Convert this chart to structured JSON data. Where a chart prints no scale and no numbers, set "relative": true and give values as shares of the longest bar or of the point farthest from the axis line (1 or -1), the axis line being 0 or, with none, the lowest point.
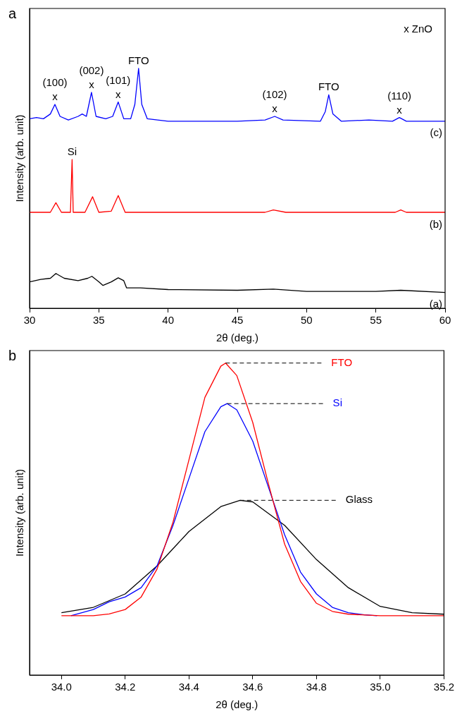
{
  "chart_data": [
    {
      "type": "line",
      "xlabel": "2θ (deg.)",
      "ylabel": "Intensity (arb. unit)",
      "xlim": [
        30,
        60
      ],
      "xticks": [
        30,
        35,
        40,
        45,
        50,
        55,
        60
      ],
      "relative": true,
      "grid": false,
      "legend": false,
      "annotations": [
        "a",
        "x ZnO",
        {
          "text": "x",
          "x": 31.83,
          "y": 0.85
        },
        {
          "text": "(100)",
          "x": 31.83,
          "y": 0.85
        },
        {
          "text": "x",
          "x": 34.47,
          "y": 0.9
        },
        {
          "text": "(002)",
          "x": 34.47,
          "y": 0.9
        },
        {
          "text": "x",
          "x": 36.4,
          "y": 0.86
        },
        {
          "text": "(101)",
          "x": 36.4,
          "y": 0.86
        },
        {
          "text": "FTO",
          "x": 37.87,
          "y": 1.0
        },
        {
          "text": "x",
          "x": 47.7,
          "y": 0.8
        },
        {
          "text": "(102)",
          "x": 47.7,
          "y": 0.8
        },
        {
          "text": "FTO",
          "x": 51.6,
          "y": 0.89
        },
        {
          "text": "x",
          "x": 56.7,
          "y": 0.795
        },
        {
          "text": "(110)",
          "x": 56.7,
          "y": 0.795
        },
        {
          "text": "Si",
          "x": 33.07,
          "y": 0.62
        }
      ],
      "series": [
        {
          "name": "(c)",
          "color": "#0000ff",
          "x": [
            30,
            30.5,
            31,
            31.5,
            31.83,
            32.2,
            32.8,
            33.5,
            33.8,
            34.1,
            34.47,
            34.8,
            35.5,
            36.0,
            36.4,
            36.8,
            37.3,
            37.6,
            37.87,
            38.1,
            38.5,
            40,
            45,
            47.0,
            47.7,
            48.3,
            51.0,
            51.35,
            51.6,
            51.9,
            52.5,
            54.5,
            56.2,
            56.7,
            57.2,
            60
          ],
          "values": [
            0.79,
            0.795,
            0.79,
            0.81,
            0.85,
            0.8,
            0.785,
            0.8,
            0.81,
            0.8,
            0.9,
            0.8,
            0.79,
            0.8,
            0.86,
            0.79,
            0.79,
            0.85,
            1.0,
            0.85,
            0.79,
            0.78,
            0.78,
            0.785,
            0.8,
            0.785,
            0.78,
            0.82,
            0.89,
            0.81,
            0.78,
            0.785,
            0.78,
            0.795,
            0.78,
            0.78
          ]
        },
        {
          "name": "(b)",
          "color": "#ff0000",
          "x": [
            30,
            31.5,
            31.9,
            32.3,
            32.95,
            33.07,
            33.15,
            34.0,
            34.55,
            35.0,
            35.9,
            36.4,
            36.9,
            40,
            47.0,
            47.6,
            48.5,
            56.4,
            56.8,
            57.2,
            60
          ],
          "values": [
            0.4,
            0.4,
            0.44,
            0.4,
            0.4,
            0.62,
            0.4,
            0.4,
            0.465,
            0.4,
            0.405,
            0.47,
            0.4,
            0.4,
            0.4,
            0.41,
            0.4,
            0.4,
            0.41,
            0.4,
            0.4
          ]
        },
        {
          "name": "(a)",
          "color": "#000000",
          "x": [
            30,
            30.8,
            31.5,
            31.9,
            32.5,
            33.5,
            34.2,
            34.5,
            35.0,
            35.3,
            35.9,
            36.4,
            36.8,
            37.0,
            38,
            40,
            45,
            47.6,
            50,
            55,
            56.8,
            60
          ],
          "values": [
            0.11,
            0.12,
            0.125,
            0.145,
            0.125,
            0.115,
            0.125,
            0.133,
            0.11,
            0.095,
            0.11,
            0.127,
            0.115,
            0.085,
            0.085,
            0.078,
            0.075,
            0.08,
            0.07,
            0.07,
            0.075,
            0.066
          ]
        }
      ]
    },
    {
      "type": "line",
      "xlabel": "2θ (deg.)",
      "ylabel": "Intensity (arb. unit)",
      "xlim": [
        33.9,
        35.2
      ],
      "xticks": [
        {
          "value": 34.0,
          "label": "34.0"
        },
        34.2,
        34.4,
        34.6,
        34.8,
        {
          "value": 35.0,
          "label": "35.0"
        },
        35.2
      ],
      "relative": true,
      "grid": false,
      "legend": false,
      "annotations": [
        "b"
      ],
      "series": [
        {
          "name": "FTO",
          "color": "#ff0000",
          "x": [
            34.0,
            34.1,
            34.15,
            34.2,
            34.25,
            34.3,
            34.35,
            34.4,
            34.45,
            34.5,
            34.515,
            34.55,
            34.6,
            34.65,
            34.7,
            34.75,
            34.8,
            34.85,
            34.9,
            35.0,
            35.2
          ],
          "values": [
            0.19,
            0.19,
            0.196,
            0.21,
            0.25,
            0.34,
            0.49,
            0.69,
            0.89,
            0.99,
            1.0,
            0.96,
            0.81,
            0.61,
            0.42,
            0.3,
            0.23,
            0.204,
            0.195,
            0.19,
            0.19
          ]
        },
        {
          "name": "Si",
          "color": "#0000ff",
          "x": [
            34.03,
            34.1,
            34.15,
            34.2,
            34.25,
            34.3,
            34.35,
            34.4,
            34.45,
            34.5,
            34.52,
            34.55,
            34.6,
            34.65,
            34.7,
            34.75,
            34.8,
            34.85,
            34.9,
            34.95,
            34.99
          ],
          "values": [
            0.19,
            0.21,
            0.235,
            0.25,
            0.28,
            0.35,
            0.48,
            0.63,
            0.78,
            0.86,
            0.87,
            0.85,
            0.75,
            0.6,
            0.45,
            0.33,
            0.26,
            0.217,
            0.2,
            0.193,
            0.19
          ]
        },
        {
          "name": "Glass",
          "color": "#000000",
          "x": [
            34.0,
            34.1,
            34.2,
            34.3,
            34.4,
            34.5,
            34.56,
            34.6,
            34.7,
            34.8,
            34.9,
            35.0,
            35.1,
            35.2
          ],
          "values": [
            0.2,
            0.217,
            0.26,
            0.35,
            0.46,
            0.54,
            0.56,
            0.555,
            0.48,
            0.37,
            0.28,
            0.22,
            0.2,
            0.195
          ]
        }
      ]
    }
  ]
}
